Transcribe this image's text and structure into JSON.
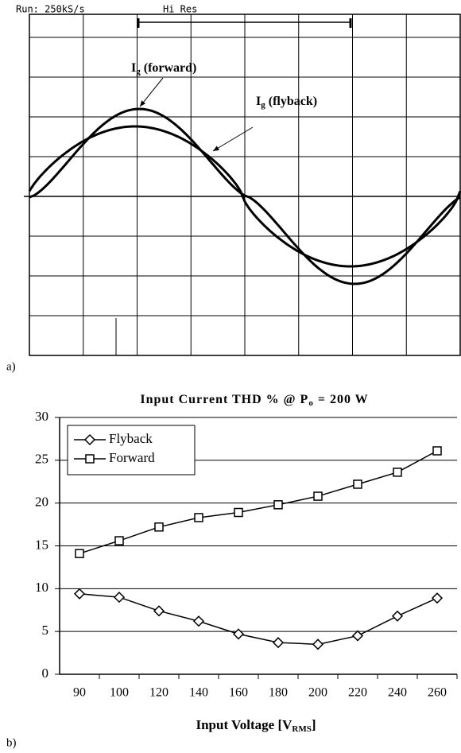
{
  "scope": {
    "header_left": "Run: 250kS/s",
    "header_right": "Hi Res",
    "panel_label": "a)",
    "labels": [
      {
        "main": "I",
        "sub": "g",
        "rest": " (forward)"
      },
      {
        "main": "I",
        "sub": "g",
        "rest": " (flyback)"
      }
    ]
  },
  "chart_data": {
    "type": "line",
    "panel_label": "b)",
    "title": "Input Current THD % @ P",
    "title_sub": "o",
    "title_end": " = 200 W",
    "x_label": "Input Voltage [V",
    "x_label_sub": "RMS",
    "x_label_end": "]",
    "categories": [
      "90",
      "100",
      "120",
      "140",
      "160",
      "180",
      "200",
      "220",
      "240",
      "260"
    ],
    "series": [
      {
        "name": "Flyback",
        "color": "#000000",
        "marker": "diamond",
        "values": [
          9.4,
          9.0,
          7.4,
          6.2,
          4.7,
          3.7,
          3.5,
          4.5,
          6.8,
          8.9
        ]
      },
      {
        "name": "Forward",
        "color": "#000000",
        "marker": "square",
        "values": [
          14.1,
          15.6,
          17.2,
          18.3,
          18.9,
          19.8,
          20.8,
          22.2,
          23.6,
          26.1
        ]
      }
    ],
    "ylim": [
      0,
      30
    ],
    "yticks": [
      0,
      5,
      10,
      15,
      20,
      25,
      30
    ],
    "grid": true,
    "legend": "top-left"
  }
}
